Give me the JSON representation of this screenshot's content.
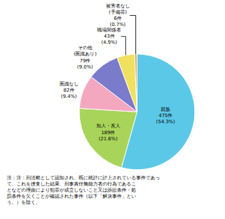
{
  "chart_data": {
    "type": "pie",
    "categories": [
      "親族",
      "知人・友人",
      "面識なし",
      "その他\n(面識あり)",
      "職場関係者",
      "被害者なし\n(予備罪)"
    ],
    "values": [
      54.3,
      21.6,
      9.4,
      9.0,
      4.9,
      0.7
    ],
    "count_labels": [
      "475件",
      "189件",
      "82件",
      "79件",
      "43件",
      "6件"
    ],
    "value_labels": [
      "(54.3%)",
      "(21.6%)",
      "(9.4%)",
      "(9.0%)",
      "(4.9%)",
      "(0.7%)"
    ],
    "colors": [
      "#5bc8e8",
      "#a8d45a",
      "#f4a8c0",
      "#7b7bcc",
      "#f0e060",
      "#e8b060"
    ],
    "data_labels": true,
    "annotations": [
      "注：注：刑法範として認知され、既に統計に計上されている事件であっ",
      "て、これを捜査した結果、刑事責任無能力者の行為であるこ",
      "となどの理由により犯罪が成立しないこと又は訴訟条件・処",
      "罰条件を欠くことが確認された事件（以下「解決事件」とい",
      "う。）を除く。"
    ]
  }
}
